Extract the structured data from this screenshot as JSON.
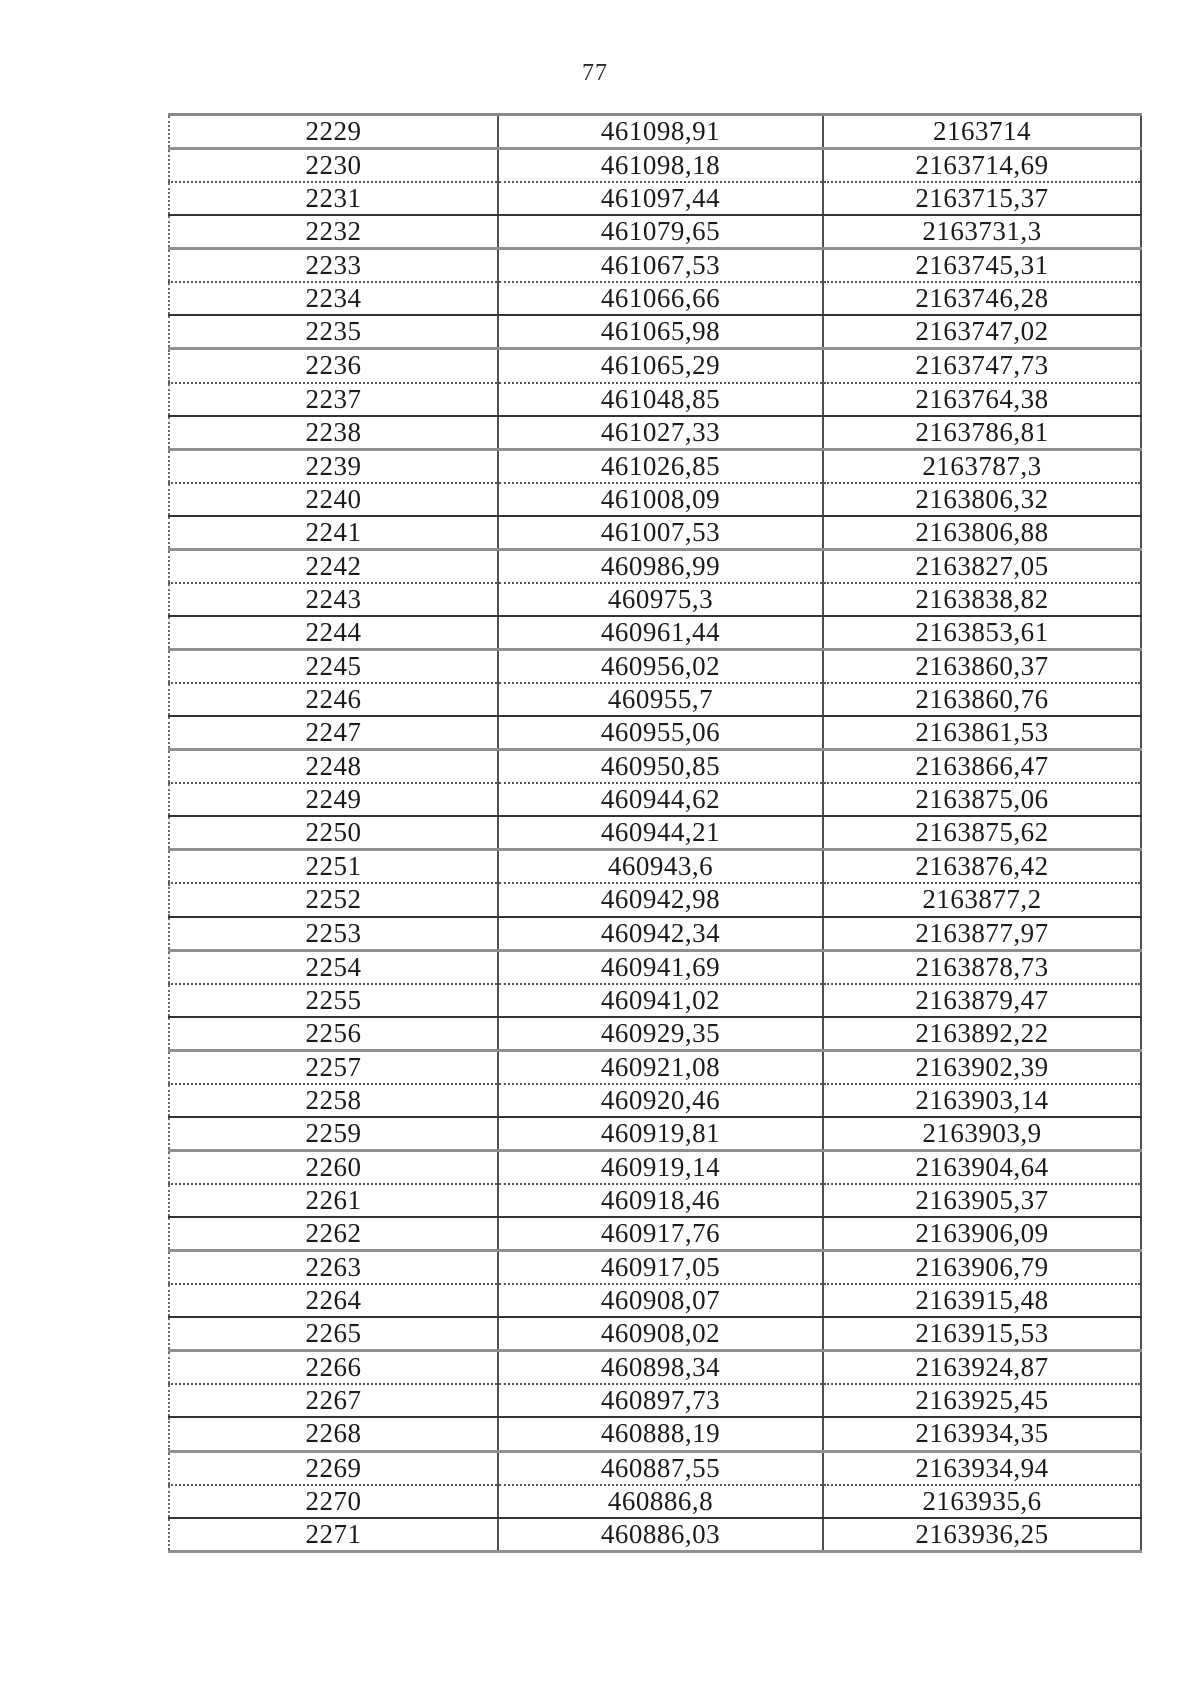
{
  "page": {
    "number": "77"
  },
  "table": {
    "rows": [
      [
        "2229",
        "461098,91",
        "2163714"
      ],
      [
        "2230",
        "461098,18",
        "2163714,69"
      ],
      [
        "2231",
        "461097,44",
        "2163715,37"
      ],
      [
        "2232",
        "461079,65",
        "2163731,3"
      ],
      [
        "2233",
        "461067,53",
        "2163745,31"
      ],
      [
        "2234",
        "461066,66",
        "2163746,28"
      ],
      [
        "2235",
        "461065,98",
        "2163747,02"
      ],
      [
        "2236",
        "461065,29",
        "2163747,73"
      ],
      [
        "2237",
        "461048,85",
        "2163764,38"
      ],
      [
        "2238",
        "461027,33",
        "2163786,81"
      ],
      [
        "2239",
        "461026,85",
        "2163787,3"
      ],
      [
        "2240",
        "461008,09",
        "2163806,32"
      ],
      [
        "2241",
        "461007,53",
        "2163806,88"
      ],
      [
        "2242",
        "460986,99",
        "2163827,05"
      ],
      [
        "2243",
        "460975,3",
        "2163838,82"
      ],
      [
        "2244",
        "460961,44",
        "2163853,61"
      ],
      [
        "2245",
        "460956,02",
        "2163860,37"
      ],
      [
        "2246",
        "460955,7",
        "2163860,76"
      ],
      [
        "2247",
        "460955,06",
        "2163861,53"
      ],
      [
        "2248",
        "460950,85",
        "2163866,47"
      ],
      [
        "2249",
        "460944,62",
        "2163875,06"
      ],
      [
        "2250",
        "460944,21",
        "2163875,62"
      ],
      [
        "2251",
        "460943,6",
        "2163876,42"
      ],
      [
        "2252",
        "460942,98",
        "2163877,2"
      ],
      [
        "2253",
        "460942,34",
        "2163877,97"
      ],
      [
        "2254",
        "460941,69",
        "2163878,73"
      ],
      [
        "2255",
        "460941,02",
        "2163879,47"
      ],
      [
        "2256",
        "460929,35",
        "2163892,22"
      ],
      [
        "2257",
        "460921,08",
        "2163902,39"
      ],
      [
        "2258",
        "460920,46",
        "2163903,14"
      ],
      [
        "2259",
        "460919,81",
        "2163903,9"
      ],
      [
        "2260",
        "460919,14",
        "2163904,64"
      ],
      [
        "2261",
        "460918,46",
        "2163905,37"
      ],
      [
        "2262",
        "460917,76",
        "2163906,09"
      ],
      [
        "2263",
        "460917,05",
        "2163906,79"
      ],
      [
        "2264",
        "460908,07",
        "2163915,48"
      ],
      [
        "2265",
        "460908,02",
        "2163915,53"
      ],
      [
        "2266",
        "460898,34",
        "2163924,87"
      ],
      [
        "2267",
        "460897,73",
        "2163925,45"
      ],
      [
        "2268",
        "460888,19",
        "2163934,35"
      ],
      [
        "2269",
        "460887,55",
        "2163934,94"
      ],
      [
        "2270",
        "460886,8",
        "2163935,6"
      ],
      [
        "2271",
        "460886,03",
        "2163936,25"
      ]
    ]
  }
}
